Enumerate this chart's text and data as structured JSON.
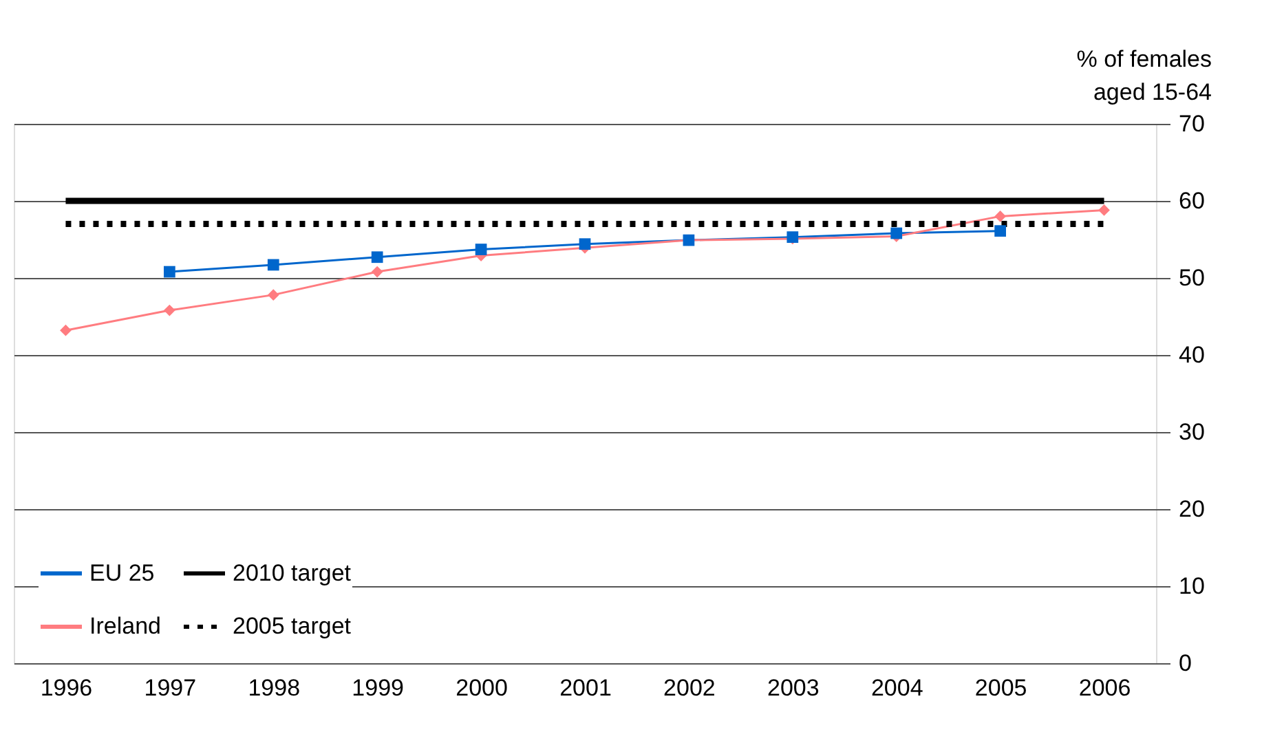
{
  "chart_data": {
    "type": "line",
    "ylabel": "% of females\naged 15-64",
    "categories": [
      "1996",
      "1997",
      "1998",
      "1999",
      "2000",
      "2001",
      "2002",
      "2003",
      "2004",
      "2005",
      "2006"
    ],
    "series": [
      {
        "name": "EU 25",
        "color": "#0066cc",
        "marker": "square",
        "values": [
          null,
          50.8,
          51.7,
          52.7,
          53.7,
          54.4,
          54.9,
          55.3,
          55.8,
          56.1,
          null
        ]
      },
      {
        "name": "Ireland",
        "color": "#ff7c80",
        "marker": "diamond",
        "values": [
          43.2,
          45.8,
          47.8,
          50.8,
          52.9,
          53.9,
          54.9,
          55.1,
          55.4,
          58.0,
          58.8
        ]
      }
    ],
    "ref_lines": [
      {
        "axis": "y",
        "value": 60,
        "label": "2010 target",
        "color": "#000000",
        "line_style": "solid"
      },
      {
        "axis": "y",
        "value": 57,
        "label": "2005 target",
        "color": "#000000",
        "line_style": "dotted"
      }
    ],
    "ylim": [
      0,
      70
    ],
    "yticks": [
      0,
      10,
      20,
      30,
      40,
      50,
      60,
      70
    ],
    "grid": "y",
    "legend": "bottom left",
    "line_style": "solid"
  }
}
